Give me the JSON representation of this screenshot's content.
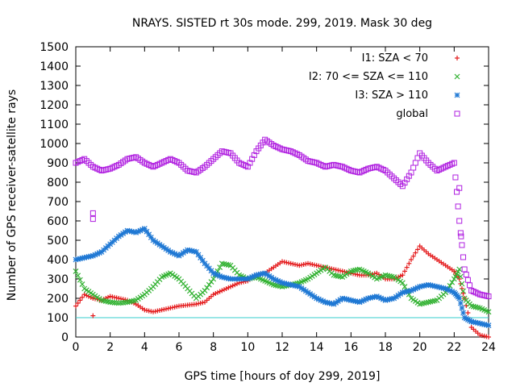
{
  "chart_data": {
    "type": "scatter",
    "title": "NRAYS. SISTED rt 30s mode. 299, 2019. Mask 30 deg",
    "xlabel": "GPS time [hours of doy 299, 2019]",
    "ylabel": "Number of GPS receiver-satellite rays",
    "xlim": [
      0,
      24
    ],
    "ylim": [
      0,
      1500
    ],
    "xticks": [
      0,
      2,
      4,
      6,
      8,
      10,
      12,
      14,
      16,
      18,
      20,
      22,
      24
    ],
    "yticks": [
      0,
      100,
      200,
      300,
      400,
      500,
      600,
      700,
      800,
      900,
      1000,
      1100,
      1200,
      1300,
      1400,
      1500
    ],
    "reference_line": {
      "y": 100,
      "color": "#33cccc"
    },
    "legend_position": "top-right",
    "series": [
      {
        "name": "I1: SZA < 70",
        "marker": "+",
        "color": "#e41a1c",
        "x": [
          0,
          0.5,
          1,
          1.5,
          2,
          2.5,
          3,
          3.5,
          4,
          4.5,
          5,
          5.5,
          6,
          6.5,
          7,
          7.5,
          8,
          8.5,
          9,
          9.5,
          10,
          10.5,
          11,
          11.5,
          12,
          12.5,
          13,
          13.5,
          14,
          14.5,
          15,
          15.5,
          16,
          16.5,
          17,
          17.5,
          18,
          18.5,
          19,
          19.5,
          20,
          20.5,
          21,
          21.5,
          22,
          22.3,
          22.6,
          23,
          23.5,
          24
        ],
        "y": [
          160,
          220,
          200,
          190,
          210,
          200,
          190,
          170,
          140,
          130,
          140,
          150,
          160,
          165,
          170,
          180,
          220,
          240,
          260,
          280,
          290,
          320,
          330,
          360,
          390,
          380,
          370,
          380,
          370,
          360,
          350,
          340,
          330,
          320,
          320,
          330,
          300,
          300,
          320,
          400,
          470,
          430,
          400,
          370,
          340,
          300,
          200,
          50,
          10,
          0
        ]
      },
      {
        "name": "I2: 70 <= SZA <= 110",
        "marker": "x",
        "color": "#33b233",
        "x": [
          0,
          0.5,
          1,
          1.5,
          2,
          2.5,
          3,
          3.5,
          4,
          4.5,
          5,
          5.5,
          6,
          6.5,
          7,
          7.5,
          8,
          8.5,
          9,
          9.5,
          10,
          10.5,
          11,
          11.5,
          12,
          12.5,
          13,
          13.5,
          14,
          14.5,
          15,
          15.5,
          16,
          16.5,
          17,
          17.5,
          18,
          18.5,
          19,
          19.5,
          20,
          20.5,
          21,
          21.5,
          22,
          22.3,
          22.6,
          23,
          23.5,
          24
        ],
        "y": [
          340,
          250,
          220,
          190,
          180,
          175,
          180,
          190,
          220,
          260,
          310,
          330,
          300,
          250,
          200,
          240,
          300,
          380,
          370,
          320,
          300,
          310,
          290,
          270,
          260,
          270,
          280,
          300,
          330,
          360,
          320,
          310,
          340,
          350,
          330,
          300,
          320,
          310,
          280,
          200,
          170,
          180,
          190,
          230,
          300,
          350,
          200,
          160,
          150,
          130
        ]
      },
      {
        "name": "I3: SZA > 110",
        "marker": "*",
        "color": "#1f78d4",
        "x": [
          0,
          0.5,
          1,
          1.5,
          2,
          2.5,
          3,
          3.5,
          4,
          4.5,
          5,
          5.5,
          6,
          6.5,
          7,
          7.5,
          8,
          8.5,
          9,
          9.5,
          10,
          10.5,
          11,
          11.5,
          12,
          12.5,
          13,
          13.5,
          14,
          14.5,
          15,
          15.5,
          16,
          16.5,
          17,
          17.5,
          18,
          18.5,
          19,
          19.5,
          20,
          20.5,
          21,
          21.5,
          22,
          22.3,
          22.6,
          23,
          23.5,
          24
        ],
        "y": [
          400,
          410,
          420,
          440,
          480,
          520,
          550,
          540,
          560,
          500,
          470,
          440,
          420,
          450,
          440,
          380,
          330,
          310,
          300,
          300,
          300,
          320,
          330,
          300,
          280,
          270,
          260,
          230,
          200,
          180,
          170,
          200,
          190,
          180,
          200,
          210,
          190,
          200,
          230,
          240,
          260,
          270,
          260,
          250,
          230,
          200,
          100,
          80,
          70,
          60
        ]
      },
      {
        "name": "global",
        "marker": "square",
        "color": "#b020e0",
        "x": [
          0,
          0.5,
          1,
          1.5,
          2,
          2.5,
          3,
          3.5,
          4,
          4.5,
          5,
          5.5,
          6,
          6.5,
          7,
          7.5,
          8,
          8.5,
          9,
          9.5,
          10,
          10.5,
          11,
          11.5,
          12,
          12.5,
          13,
          13.5,
          14,
          14.5,
          15,
          15.5,
          16,
          16.5,
          17,
          17.5,
          18,
          18.5,
          19,
          19.5,
          20,
          20.5,
          21,
          21.5,
          22,
          22.3,
          22.6,
          23,
          23.5,
          24
        ],
        "y": [
          900,
          920,
          880,
          860,
          870,
          890,
          920,
          930,
          900,
          880,
          900,
          920,
          900,
          860,
          850,
          880,
          920,
          960,
          950,
          900,
          880,
          960,
          1020,
          990,
          970,
          960,
          940,
          910,
          900,
          880,
          890,
          880,
          860,
          850,
          870,
          880,
          860,
          820,
          780,
          850,
          950,
          900,
          860,
          880,
          900,
          600,
          350,
          240,
          220,
          210
        ]
      }
    ],
    "outliers": [
      {
        "series": "global",
        "x": 1,
        "y": 640
      },
      {
        "series": "global",
        "x": 1,
        "y": 610
      },
      {
        "series": "global",
        "x": 22.3,
        "y": 770
      },
      {
        "series": "global",
        "x": 22.4,
        "y": 520
      },
      {
        "series": "I1: SZA < 70",
        "x": 1,
        "y": 110
      }
    ]
  }
}
